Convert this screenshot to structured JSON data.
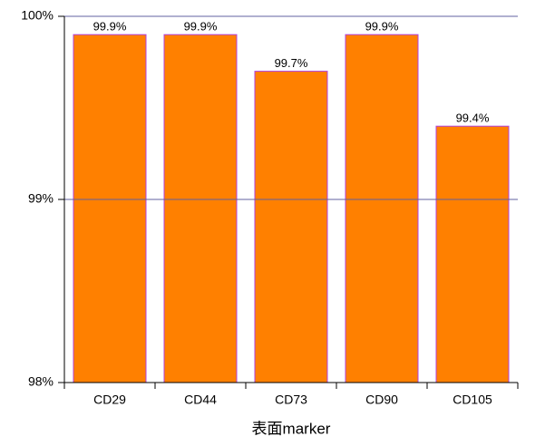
{
  "chart_data": {
    "type": "bar",
    "x_label": "表面marker",
    "categories": [
      "CD29",
      "CD44",
      "CD73",
      "CD90",
      "CD105"
    ],
    "values": [
      99.9,
      99.9,
      99.7,
      99.9,
      99.4
    ],
    "value_labels": [
      "99.9%",
      "99.9%",
      "99.7%",
      "99.9%",
      "99.4%"
    ],
    "color": "#ff8000",
    "edge_color": "#b040e0",
    "ylim": [
      98,
      100
    ],
    "yticks": [
      {
        "value": 98,
        "label": "98%"
      },
      {
        "value": 99,
        "label": "99%"
      },
      {
        "value": 100,
        "label": "100%"
      }
    ],
    "grid": true
  }
}
